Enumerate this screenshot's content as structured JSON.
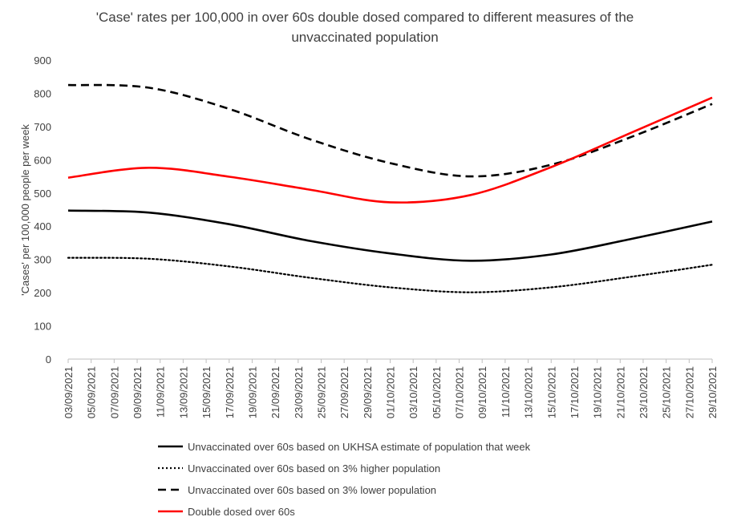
{
  "chart_data": {
    "type": "line",
    "title_line1": "'Case' rates per 100,000 in over 60s double dosed compared to different measures of the",
    "title_line2": "unvaccinated population",
    "ylabel": "'Cases' per 100,000 people per week",
    "xlabel": "",
    "ylim": [
      0,
      900
    ],
    "yticks": [
      0,
      100,
      200,
      300,
      400,
      500,
      600,
      700,
      800,
      900
    ],
    "grid": false,
    "legend_position": "bottom",
    "categories": [
      "03/09/2021",
      "05/09/2021",
      "07/09/2021",
      "09/09/2021",
      "11/09/2021",
      "13/09/2021",
      "15/09/2021",
      "17/09/2021",
      "19/09/2021",
      "21/09/2021",
      "23/09/2021",
      "25/09/2021",
      "27/09/2021",
      "29/09/2021",
      "01/10/2021",
      "03/10/2021",
      "05/10/2021",
      "07/10/2021",
      "09/10/2021",
      "11/10/2021",
      "13/10/2021",
      "15/10/2021",
      "17/10/2021",
      "19/10/2021",
      "21/10/2021",
      "23/10/2021",
      "25/10/2021",
      "27/10/2021",
      "29/10/2021"
    ],
    "series": [
      {
        "name": "Unvaccinated over 60s based on UKHSA estimate of population that week",
        "color": "#000000",
        "style": "solid",
        "points": [
          [
            "03/09/2021",
            447
          ],
          [
            "10/09/2021",
            441
          ],
          [
            "17/09/2021",
            406
          ],
          [
            "24/09/2021",
            356
          ],
          [
            "01/10/2021",
            318
          ],
          [
            "08/10/2021",
            296
          ],
          [
            "15/10/2021",
            315
          ],
          [
            "22/10/2021",
            362
          ],
          [
            "29/10/2021",
            414
          ]
        ]
      },
      {
        "name": "Unvaccinated over 60s based on 3% higher population",
        "color": "#000000",
        "style": "dotted",
        "points": [
          [
            "03/09/2021",
            305
          ],
          [
            "10/09/2021",
            302
          ],
          [
            "17/09/2021",
            279
          ],
          [
            "24/09/2021",
            245
          ],
          [
            "01/10/2021",
            216
          ],
          [
            "08/10/2021",
            201
          ],
          [
            "15/10/2021",
            216
          ],
          [
            "22/10/2021",
            248
          ],
          [
            "29/10/2021",
            284
          ]
        ]
      },
      {
        "name": "Unvaccinated over 60s based on 3% lower population",
        "color": "#000000",
        "style": "dashed",
        "points": [
          [
            "03/09/2021",
            825
          ],
          [
            "10/09/2021",
            817
          ],
          [
            "17/09/2021",
            753
          ],
          [
            "24/09/2021",
            662
          ],
          [
            "01/10/2021",
            590
          ],
          [
            "08/10/2021",
            550
          ],
          [
            "15/10/2021",
            585
          ],
          [
            "22/10/2021",
            669
          ],
          [
            "29/10/2021",
            768
          ]
        ]
      },
      {
        "name": "Double dosed over 60s",
        "color": "#ff0000",
        "style": "solid",
        "points": [
          [
            "03/09/2021",
            546
          ],
          [
            "10/09/2021",
            576
          ],
          [
            "17/09/2021",
            549
          ],
          [
            "24/09/2021",
            510
          ],
          [
            "01/10/2021",
            472
          ],
          [
            "08/10/2021",
            494
          ],
          [
            "15/10/2021",
            578
          ],
          [
            "22/10/2021",
            682
          ],
          [
            "29/10/2021",
            787
          ]
        ]
      }
    ]
  }
}
